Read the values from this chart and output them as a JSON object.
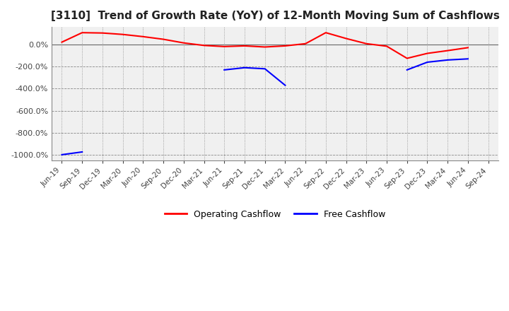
{
  "title": "[3110]  Trend of Growth Rate (YoY) of 12-Month Moving Sum of Cashflows",
  "title_fontsize": 11,
  "ylim": [
    -1050,
    160
  ],
  "yticks": [
    0,
    -200,
    -400,
    -600,
    -800,
    -1000
  ],
  "background_color": "#ffffff",
  "plot_bg_color": "#f0f0f0",
  "grid_color_h": "#888888",
  "grid_color_v": "#888888",
  "operating_color": "#ff0000",
  "free_color": "#0000ff",
  "dates": [
    "Jun-19",
    "Sep-19",
    "Dec-19",
    "Mar-20",
    "Jun-20",
    "Sep-20",
    "Dec-20",
    "Mar-21",
    "Jun-21",
    "Sep-21",
    "Dec-21",
    "Mar-22",
    "Jun-22",
    "Sep-22",
    "Dec-22",
    "Mar-23",
    "Jun-23",
    "Sep-23",
    "Dec-23",
    "Mar-24",
    "Jun-24",
    "Sep-24"
  ],
  "operating_cashflow": [
    22,
    108,
    105,
    92,
    72,
    48,
    15,
    -8,
    -18,
    -12,
    -22,
    -12,
    8,
    108,
    55,
    8,
    -15,
    -125,
    -80,
    -55,
    -28,
    null
  ],
  "free_cashflow_seg1": {
    "indices": [
      0,
      1
    ],
    "values": [
      -1000,
      -975
    ]
  },
  "free_cashflow_seg2": {
    "indices": [
      8,
      9,
      10,
      11,
      12
    ],
    "values": [
      -230,
      -210,
      -220,
      -370,
      null
    ]
  },
  "free_cashflow_seg3": {
    "indices": [
      17,
      18,
      19,
      20
    ],
    "values": [
      -230,
      -160,
      -140,
      -130
    ]
  },
  "legend_labels": [
    "Operating Cashflow",
    "Free Cashflow"
  ],
  "legend_colors": [
    "#ff0000",
    "#0000ff"
  ]
}
